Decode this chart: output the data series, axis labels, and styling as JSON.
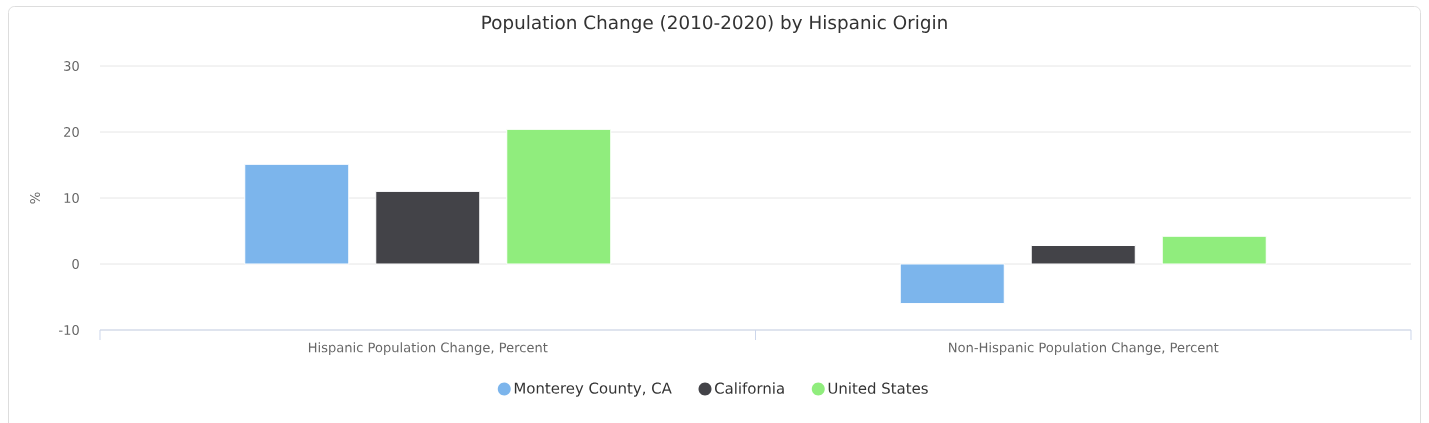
{
  "chart_data": {
    "type": "bar",
    "title": "Population Change (2010-2020) by Hispanic Origin",
    "ylabel": "%",
    "categories": [
      "Hispanic Population Change, Percent",
      "Non-Hispanic Population Change, Percent"
    ],
    "series": [
      {
        "name": "Monterey County, CA",
        "color": "#7cb5ec",
        "values": [
          15.1,
          -6.0
        ]
      },
      {
        "name": "California",
        "color": "#434348",
        "values": [
          11.0,
          2.8
        ]
      },
      {
        "name": "United States",
        "color": "#90ed7d",
        "values": [
          20.4,
          4.2
        ]
      }
    ],
    "ylim": [
      -10,
      30
    ],
    "yticks": [
      -10,
      0,
      10,
      20,
      30
    ],
    "grid": "y",
    "legend": "bottom"
  }
}
